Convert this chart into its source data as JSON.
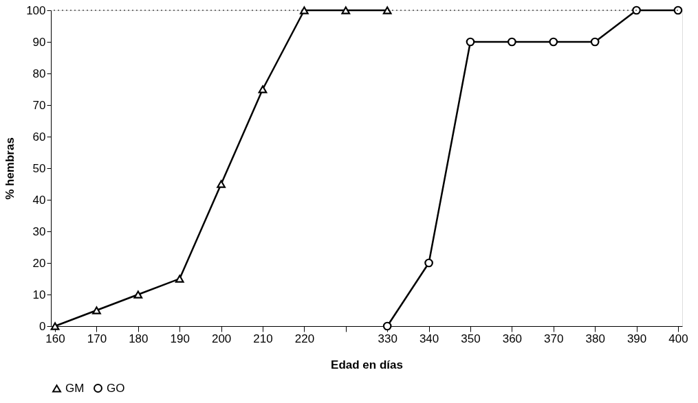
{
  "chart_data": {
    "type": "line",
    "xlabel": "Edad en días",
    "ylabel": "% hembras",
    "categories": [
      "160",
      "170",
      "180",
      "190",
      "200",
      "210",
      "220",
      null,
      "330",
      "340",
      "350",
      "360",
      "370",
      "380",
      "390",
      "400"
    ],
    "series": [
      {
        "name": "GM",
        "color": "#000000",
        "marker": "triangle",
        "values": [
          0,
          5,
          10,
          15,
          45,
          75,
          100,
          100,
          100,
          null,
          null,
          null,
          null,
          null,
          null,
          null
        ]
      },
      {
        "name": "GO",
        "color": "#000000",
        "marker": "circle",
        "values": [
          null,
          null,
          null,
          null,
          null,
          null,
          null,
          null,
          0,
          20,
          90,
          90,
          90,
          90,
          100,
          100
        ]
      }
    ],
    "ylim": [
      0,
      100
    ],
    "yticks": [
      0,
      10,
      20,
      30,
      40,
      50,
      60,
      70,
      80,
      90,
      100
    ],
    "grid": false,
    "legend": "bottom",
    "line_style": "solid",
    "ref_lines": [
      {
        "axis": "y",
        "value": 100,
        "color": "#000000",
        "line_style": "dotted"
      }
    ]
  }
}
